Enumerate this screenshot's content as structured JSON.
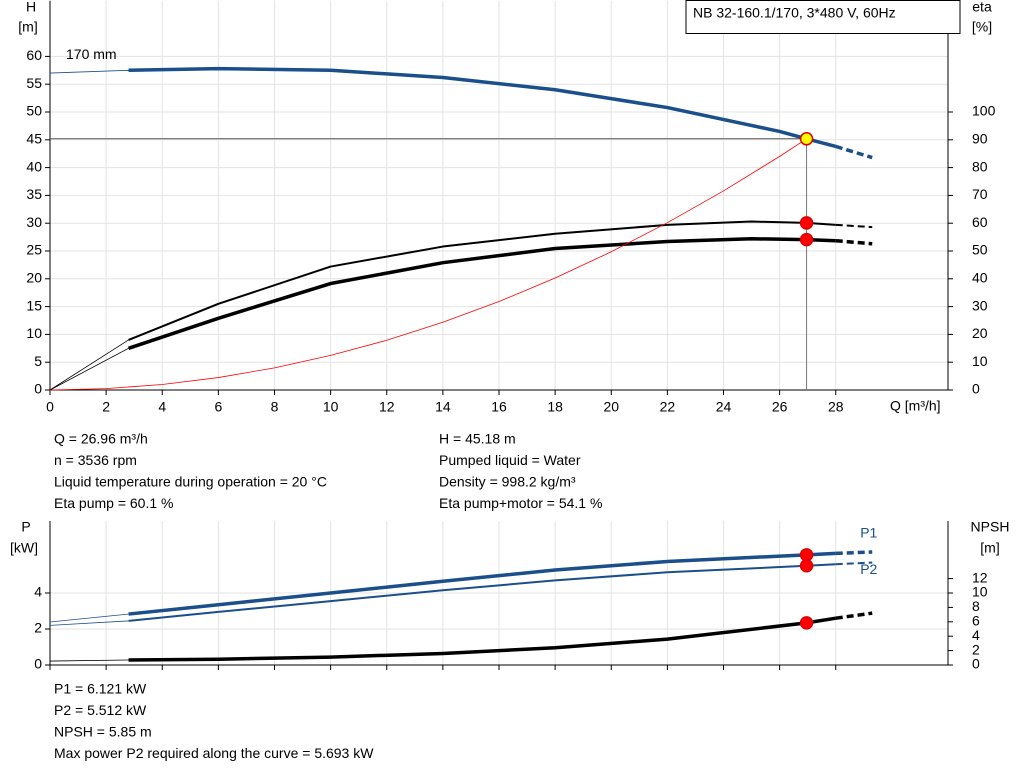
{
  "chart_data": [
    {
      "type": "line",
      "title": "NB 32-160.1/170, 3*480 V, 60Hz",
      "ylabel": "H",
      "yunit": "[m]",
      "y2label": "eta",
      "y2unit": "[%]",
      "xlabel": "Q [m³/h]",
      "curve_label": "170 mm",
      "xlim": [
        0,
        32
      ],
      "xticks": [
        0,
        2,
        4,
        6,
        8,
        10,
        12,
        14,
        16,
        18,
        20,
        22,
        24,
        26,
        28
      ],
      "ylim": [
        0,
        70
      ],
      "yticks": [
        0,
        5,
        10,
        15,
        20,
        25,
        30,
        35,
        40,
        45,
        50,
        55,
        60
      ],
      "y2lim": [
        0,
        140
      ],
      "y2ticks": [
        0,
        10,
        20,
        30,
        40,
        50,
        60,
        70,
        80,
        90,
        100
      ],
      "grid": true,
      "duty_point": {
        "x": 26.96,
        "y": 45.18
      },
      "series": [
        {
          "color": "#1a4f8b",
          "linewidth": 3.5,
          "extrapolated": true,
          "marker_fill": "#ffff00",
          "marker_stroke": "#e00000",
          "x": [
            0,
            2.8,
            6,
            10,
            14,
            18,
            22,
            26,
            26.96,
            28,
            29.3
          ],
          "values": [
            57,
            57.5,
            57.8,
            57.5,
            56.2,
            54,
            50.8,
            46.5,
            45.18,
            43.8,
            41.8
          ]
        },
        {
          "color": "#000000",
          "linewidth": 2,
          "axis": "y2",
          "extrapolated": true,
          "marker_fill": "#ff0000",
          "marker_stroke": "#e00000",
          "x": [
            0,
            2.8,
            6,
            10,
            14,
            18,
            22,
            25,
            26.96,
            28,
            29.3
          ],
          "values": [
            0,
            18,
            31,
            44.4,
            51.6,
            56.2,
            59.4,
            60.6,
            60.1,
            59.4,
            58.6
          ]
        },
        {
          "color": "#000000",
          "linewidth": 3.5,
          "axis": "y2",
          "extrapolated": true,
          "marker_fill": "#ff0000",
          "marker_stroke": "#e00000",
          "x": [
            0,
            2.8,
            6,
            10,
            14,
            18,
            22,
            25,
            26.96,
            28,
            29.3
          ],
          "values": [
            0,
            15,
            25.8,
            38.3,
            45.8,
            50.9,
            53.4,
            54.4,
            54.1,
            53.7,
            52.6
          ]
        },
        {
          "color": "#ff0000",
          "linewidth": 0.8,
          "x": [
            0,
            2,
            4,
            6,
            8,
            10,
            12,
            14,
            16,
            18,
            20,
            22,
            24,
            26,
            26.96
          ],
          "values": [
            0,
            0.25,
            0.99,
            2.24,
            3.98,
            6.22,
            8.95,
            12.18,
            15.91,
            20.14,
            24.86,
            30.09,
            35.8,
            42.02,
            45.18
          ]
        }
      ],
      "info": [
        [
          "Q = 26.96 m³/h",
          "n = 3536 rpm",
          "Liquid temperature during operation = 20 °C",
          "Eta pump = 60.1 %"
        ],
        [
          "H = 45.18 m",
          "Pumped liquid = Water",
          "Density = 998.2 kg/m³",
          "Eta pump+motor = 54.1 %"
        ]
      ]
    },
    {
      "type": "line",
      "ylabel": "P",
      "yunit": "[kW]",
      "y2label": "NPSH",
      "y2unit": "[m]",
      "xlim": [
        0,
        32
      ],
      "xticks": [
        0,
        2,
        4,
        6,
        8,
        10,
        12,
        14,
        16,
        18,
        20,
        22,
        24,
        26,
        28
      ],
      "ylim": [
        0,
        8
      ],
      "yticks": [
        0,
        2,
        4
      ],
      "y2lim": [
        0,
        20
      ],
      "y2ticks": [
        0,
        2,
        4,
        6,
        8,
        10,
        12
      ],
      "grid": true,
      "duty_point": {
        "x": 26.96
      },
      "series": [
        {
          "name": "P1",
          "color": "#1a4f8b",
          "linewidth": 3.5,
          "extrapolated": true,
          "marker_fill": "#ff0000",
          "marker_stroke": "#e00000",
          "x": [
            0,
            2.8,
            6,
            10,
            14,
            18,
            22,
            26.96,
            28,
            29.3
          ],
          "values": [
            2.39,
            2.83,
            3.35,
            4.0,
            4.65,
            5.28,
            5.75,
            6.121,
            6.2,
            6.28
          ]
        },
        {
          "name": "P2",
          "color": "#1a4f8b",
          "linewidth": 2,
          "extrapolated": true,
          "marker_fill": "#ff0000",
          "marker_stroke": "#e00000",
          "x": [
            0,
            2.8,
            6,
            10,
            14,
            18,
            22,
            26.96,
            28,
            29.3
          ],
          "values": [
            2.2,
            2.45,
            2.95,
            3.55,
            4.15,
            4.7,
            5.15,
            5.512,
            5.6,
            5.693
          ]
        },
        {
          "color": "#000000",
          "linewidth": 3.5,
          "axis": "y2",
          "extrapolated": true,
          "marker_fill": "#ff0000",
          "marker_stroke": "#e00000",
          "x": [
            0,
            2.8,
            6,
            10,
            14,
            18,
            22,
            26.96,
            28,
            29.3
          ],
          "values": [
            0.55,
            0.7,
            0.8,
            1.1,
            1.6,
            2.4,
            3.6,
            5.85,
            6.5,
            7.2
          ]
        }
      ],
      "info": [
        [
          "P1 = 6.121 kW",
          "P2 = 5.512 kW",
          "NPSH = 5.85 m",
          "Max power P2 required along the curve = 5.693 kW"
        ]
      ]
    }
  ]
}
